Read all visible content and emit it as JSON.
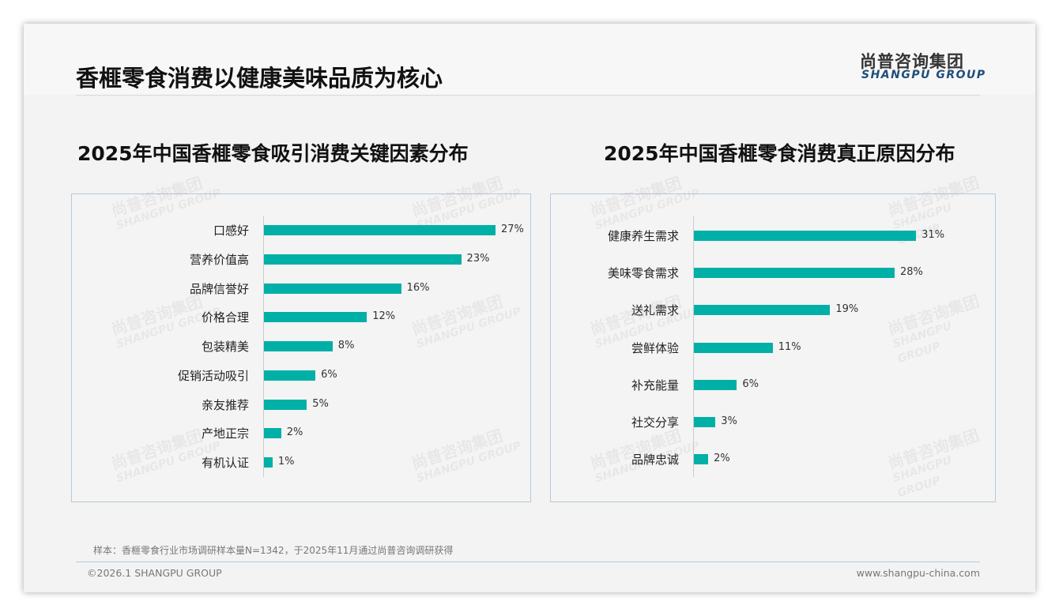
{
  "header": {
    "title": "香榧零食消费以健康美味品质为核心",
    "logo_cn": "尚普咨询集团",
    "logo_en": "SHANGPU GROUP"
  },
  "watermark": {
    "cn": "尚普咨询集团",
    "en": "SHANGPU GROUP"
  },
  "chart_data": [
    {
      "type": "bar",
      "orientation": "horizontal",
      "title": "2025年中国香榧零食吸引消费关键因素分布",
      "categories": [
        "口感好",
        "营养价值高",
        "品牌信誉好",
        "价格合理",
        "包装精美",
        "促销活动吸引",
        "亲友推荐",
        "产地正宗",
        "有机认证"
      ],
      "values": [
        27,
        23,
        16,
        12,
        8,
        6,
        5,
        2,
        1
      ],
      "labels": [
        "27%",
        "23%",
        "16%",
        "12%",
        "8%",
        "6%",
        "5%",
        "2%",
        "1%"
      ],
      "unit": "%",
      "color": "#00b0a6"
    },
    {
      "type": "bar",
      "orientation": "horizontal",
      "title": "2025年中国香榧零食消费真正原因分布",
      "categories": [
        "健康养生需求",
        "美味零食需求",
        "送礼需求",
        "尝鲜体验",
        "补充能量",
        "社交分享",
        "品牌忠诚"
      ],
      "values": [
        31,
        28,
        19,
        11,
        6,
        3,
        2
      ],
      "labels": [
        "31%",
        "28%",
        "19%",
        "11%",
        "6%",
        "3%",
        "2%"
      ],
      "unit": "%",
      "color": "#00b0a6"
    }
  ],
  "footer": {
    "note": "样本：香榧零食行业市场调研样本量N=1342，于2025年11月通过尚普咨询调研获得",
    "copyright": "©2026.1 SHANGPU GROUP",
    "website": "www.shangpu-china.com"
  }
}
